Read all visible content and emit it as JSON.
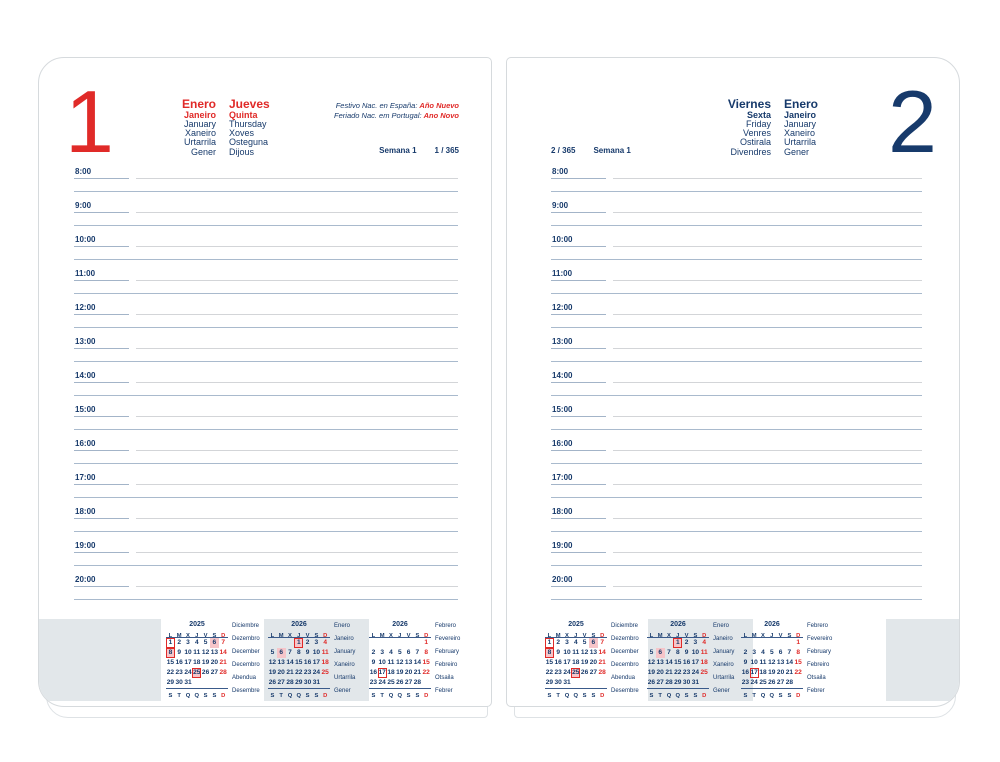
{
  "pages": {
    "left": {
      "day_number": "1",
      "months": [
        "Enero",
        "Janeiro",
        "January",
        "Xaneiro",
        "Urtarrila",
        "Gener"
      ],
      "days": [
        "Jueves",
        "Quinta",
        "Thursday",
        "Xoves",
        "Osteguna",
        "Dijous"
      ],
      "holiday_notes": [
        {
          "prefix": "Festivo Nac. en España:",
          "holiday": "Año Nuevo"
        },
        {
          "prefix": "Feriado Nac. em Portugal:",
          "holiday": "Ano Novo"
        }
      ],
      "week_label": "Semana 1",
      "day_of_year": "1 / 365"
    },
    "right": {
      "day_number": "2",
      "days": [
        "Viernes",
        "Sexta",
        "Friday",
        "Venres",
        "Ostirala",
        "Divendres"
      ],
      "months": [
        "Enero",
        "Janeiro",
        "January",
        "Xaneiro",
        "Urtarrila",
        "Gener"
      ],
      "week_label": "Semana 1",
      "day_of_year": "2 / 365"
    }
  },
  "schedule": {
    "hours": [
      "8:00",
      "9:00",
      "10:00",
      "11:00",
      "12:00",
      "13:00",
      "14:00",
      "15:00",
      "16:00",
      "17:00",
      "18:00",
      "19:00",
      "20:00"
    ]
  },
  "weekday_letters": {
    "top": [
      "L",
      "M",
      "X",
      "J",
      "V",
      "S",
      "D"
    ],
    "bottom": [
      "S",
      "T",
      "Q",
      "Q",
      "S",
      "S",
      "D"
    ]
  },
  "mini_calendars": [
    {
      "year": "2025",
      "month_names": [
        "Diciembre",
        "Dezembro",
        "December",
        "Decembro",
        "Abendua",
        "Desembre"
      ],
      "weeks": [
        [
          "1",
          "2",
          "3",
          "4",
          "5",
          "6",
          "7"
        ],
        [
          "8",
          "9",
          "10",
          "11",
          "12",
          "13",
          "14"
        ],
        [
          "15",
          "16",
          "17",
          "18",
          "19",
          "20",
          "21"
        ],
        [
          "22",
          "23",
          "24",
          "25",
          "26",
          "27",
          "28"
        ],
        [
          "29",
          "30",
          "31",
          "",
          "",
          "",
          ""
        ]
      ],
      "sunday_red": [
        "7",
        "14",
        "21",
        "28"
      ],
      "boxed": [
        "1",
        "8",
        "25"
      ],
      "highlighted": [
        "6",
        "8",
        "25"
      ]
    },
    {
      "year": "2026",
      "month_names": [
        "Enero",
        "Janeiro",
        "January",
        "Xaneiro",
        "Urtarrila",
        "Gener"
      ],
      "weeks": [
        [
          "",
          "",
          "",
          "1",
          "2",
          "3",
          "4"
        ],
        [
          "5",
          "6",
          "7",
          "8",
          "9",
          "10",
          "11"
        ],
        [
          "12",
          "13",
          "14",
          "15",
          "16",
          "17",
          "18"
        ],
        [
          "19",
          "20",
          "21",
          "22",
          "23",
          "24",
          "25"
        ],
        [
          "26",
          "27",
          "28",
          "29",
          "30",
          "31",
          ""
        ]
      ],
      "sunday_red": [
        "4",
        "11",
        "18",
        "25"
      ],
      "boxed": [
        "1"
      ],
      "highlighted": [
        "1",
        "6"
      ]
    },
    {
      "year": "2026",
      "month_names": [
        "Febrero",
        "Fevereiro",
        "February",
        "Febreiro",
        "Otsaila",
        "Febrer"
      ],
      "weeks": [
        [
          "",
          "",
          "",
          "",
          "",
          "",
          "1"
        ],
        [
          "2",
          "3",
          "4",
          "5",
          "6",
          "7",
          "8"
        ],
        [
          "9",
          "10",
          "11",
          "12",
          "13",
          "14",
          "15"
        ],
        [
          "16",
          "17",
          "18",
          "19",
          "20",
          "21",
          "22"
        ],
        [
          "23",
          "24",
          "25",
          "26",
          "27",
          "28",
          ""
        ]
      ],
      "sunday_red": [
        "1",
        "8",
        "15",
        "22"
      ],
      "boxed": [
        "17"
      ],
      "highlighted": []
    }
  ],
  "colors": {
    "navy": "#173a6b",
    "red": "#e02a28",
    "holiday_highlight": "#f6c5c9",
    "band_gray": "#e2e7ea"
  }
}
